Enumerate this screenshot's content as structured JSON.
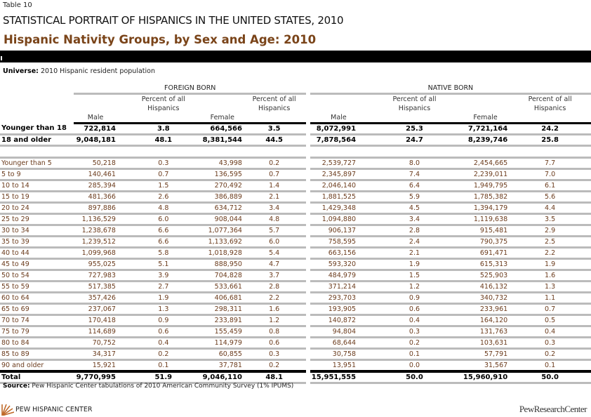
{
  "table_label": "Table 10",
  "main_title": "STATISTICAL PORTRAIT OF HISPANICS IN THE UNITED STATES, 2010",
  "sub_title": "Hispanic Nativity Groups, by Sex and Age: 2010",
  "universe": {
    "label": "Universe:",
    "text": " 2010 Hispanic resident population"
  },
  "groups": [
    "FOREIGN BORN",
    "NATIVE BORN"
  ],
  "columns": {
    "male": "Male",
    "pct1": "Percent of all",
    "pct2": "Hispanics",
    "female": "Female"
  },
  "summary_rows": [
    [
      "Younger than 18",
      "722,814",
      "3.8",
      "664,566",
      "3.5",
      "8,072,991",
      "25.3",
      "7,721,164",
      "24.2"
    ],
    [
      "18 and older",
      "9,048,181",
      "48.1",
      "8,381,544",
      "44.5",
      "7,878,564",
      "24.7",
      "8,239,746",
      "25.8"
    ]
  ],
  "rows": [
    [
      "Younger than 5",
      "50,218",
      "0.3",
      "43,998",
      "0.2",
      "2,539,727",
      "8.0",
      "2,454,665",
      "7.7"
    ],
    [
      "5 to 9",
      "140,461",
      "0.7",
      "136,595",
      "0.7",
      "2,345,897",
      "7.4",
      "2,239,011",
      "7.0"
    ],
    [
      "10 to 14",
      "285,394",
      "1.5",
      "270,492",
      "1.4",
      "2,046,140",
      "6.4",
      "1,949,795",
      "6.1"
    ],
    [
      "15 to 19",
      "481,366",
      "2.6",
      "386,889",
      "2.1",
      "1,881,525",
      "5.9",
      "1,785,382",
      "5.6"
    ],
    [
      "20 to 24",
      "897,886",
      "4.8",
      "634,712",
      "3.4",
      "1,429,348",
      "4.5",
      "1,394,179",
      "4.4"
    ],
    [
      "25 to 29",
      "1,136,529",
      "6.0",
      "908,044",
      "4.8",
      "1,094,880",
      "3.4",
      "1,119,638",
      "3.5"
    ],
    [
      "30 to 34",
      "1,238,678",
      "6.6",
      "1,077,364",
      "5.7",
      "906,137",
      "2.8",
      "915,481",
      "2.9"
    ],
    [
      "35 to 39",
      "1,239,512",
      "6.6",
      "1,133,692",
      "6.0",
      "758,595",
      "2.4",
      "790,375",
      "2.5"
    ],
    [
      "40 to 44",
      "1,099,968",
      "5.8",
      "1,018,928",
      "5.4",
      "663,156",
      "2.1",
      "691,471",
      "2.2"
    ],
    [
      "45 to 49",
      "955,025",
      "5.1",
      "888,950",
      "4.7",
      "593,320",
      "1.9",
      "615,313",
      "1.9"
    ],
    [
      "50 to 54",
      "727,983",
      "3.9",
      "704,828",
      "3.7",
      "484,979",
      "1.5",
      "525,903",
      "1.6"
    ],
    [
      "55 to 59",
      "517,385",
      "2.7",
      "533,661",
      "2.8",
      "371,214",
      "1.2",
      "416,132",
      "1.3"
    ],
    [
      "60 to 64",
      "357,426",
      "1.9",
      "406,681",
      "2.2",
      "293,703",
      "0.9",
      "340,732",
      "1.1"
    ],
    [
      "65 to 69",
      "237,067",
      "1.3",
      "298,311",
      "1.6",
      "193,905",
      "0.6",
      "233,961",
      "0.7"
    ],
    [
      "70 to 74",
      "170,418",
      "0.9",
      "233,891",
      "1.2",
      "140,872",
      "0.4",
      "164,120",
      "0.5"
    ],
    [
      "75 to 79",
      "114,689",
      "0.6",
      "155,459",
      "0.8",
      "94,804",
      "0.3",
      "131,763",
      "0.4"
    ],
    [
      "80 to 84",
      "70,752",
      "0.4",
      "114,979",
      "0.6",
      "68,644",
      "0.2",
      "103,631",
      "0.3"
    ],
    [
      "85 to 89",
      "34,317",
      "0.2",
      "60,855",
      "0.3",
      "30,758",
      "0.1",
      "57,791",
      "0.2"
    ],
    [
      "90 and older",
      "15,921",
      "0.1",
      "37,781",
      "0.2",
      "13,951",
      "0.0",
      "31,567",
      "0.1"
    ]
  ],
  "total_row": [
    "Total",
    "9,770,995",
    "51.9",
    "9,046,110",
    "48.1",
    "15,951,555",
    "50.0",
    "15,960,910",
    "50.0"
  ],
  "source": {
    "label": "Source:",
    "text": " Pew Hispanic Center tabulations of 2010 American Community Survey (1% IPUMS)"
  },
  "footer": {
    "left_logo": "PEW HISPANIC CENTER",
    "right_logo": "PewResearchCenter"
  },
  "colors": {
    "title_brown": "#7a4419",
    "row_text": "#6b3b1c",
    "rule_gray": "#bbbbbb"
  }
}
